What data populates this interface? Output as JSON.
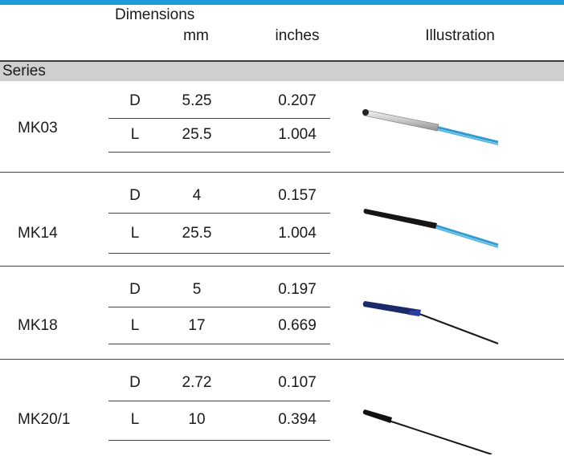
{
  "header": {
    "dimensions": "Dimensions",
    "mm": "mm",
    "inches": "inches",
    "illustration": "Illustration",
    "series": "Series"
  },
  "rows": [
    {
      "series": "MK03",
      "d_label": "D",
      "d_mm": "5.25",
      "d_in": "0.207",
      "l_label": "L",
      "l_mm": "25.5",
      "l_in": "1.004",
      "illustration": "silver-sensor-blue-wires"
    },
    {
      "series": "MK14",
      "d_label": "D",
      "d_mm": "4",
      "d_in": "0.157",
      "l_label": "L",
      "l_mm": "25.5",
      "l_in": "1.004",
      "illustration": "black-sensor-blue-wires"
    },
    {
      "series": "MK18",
      "d_label": "D",
      "d_mm": "5",
      "d_in": "0.197",
      "l_label": "L",
      "l_mm": "17",
      "l_in": "0.669",
      "illustration": "navy-sensor-black-cable"
    },
    {
      "series": "MK20/1",
      "d_label": "D",
      "d_mm": "2.72",
      "d_in": "0.107",
      "l_label": "L",
      "l_mm": "10",
      "l_in": "0.394",
      "illustration": "black-sensor-black-cable"
    }
  ],
  "colors": {
    "accent": "#1e9ad9",
    "series_band": "#cfcfcf",
    "wire_blue": "#3aa5d6"
  }
}
